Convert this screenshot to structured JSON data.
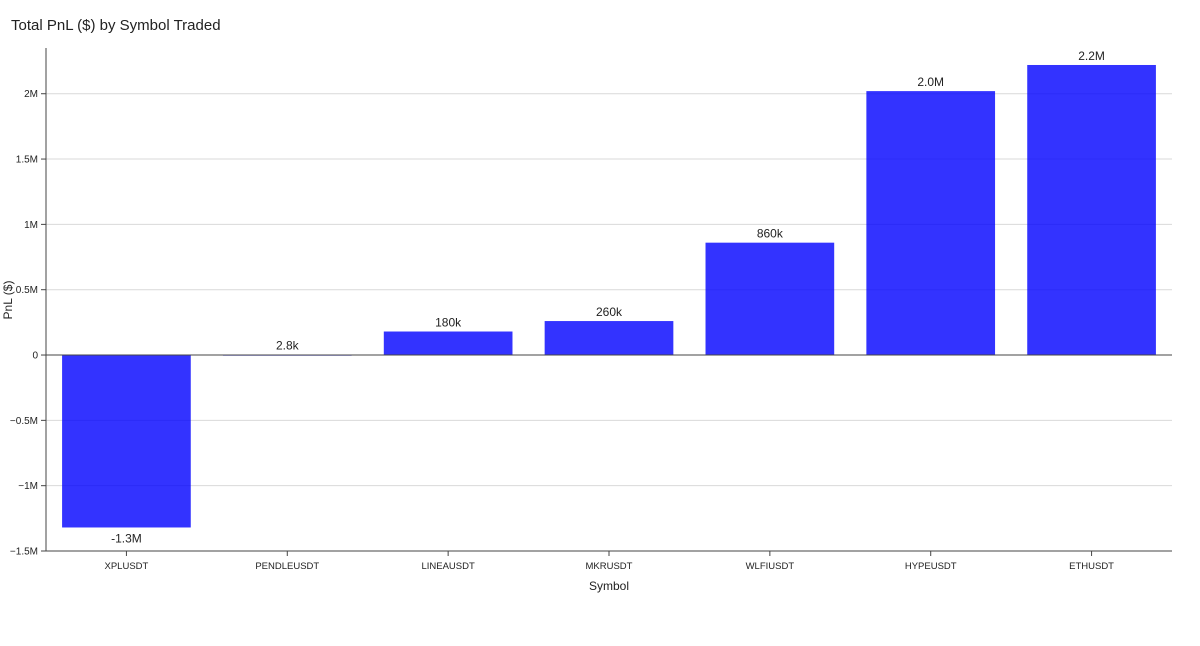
{
  "chart_data": {
    "type": "bar",
    "title": "Total PnL ($) by Symbol Traded",
    "xlabel": "Symbol",
    "ylabel": "PnL ($)",
    "categories": [
      "XPLUSDT",
      "PENDLEUSDT",
      "LINEAUSDT",
      "MKRUSDT",
      "WLFIUSDT",
      "HYPEUSDT",
      "ETHUSDT"
    ],
    "values": [
      -1320000,
      2800,
      180000,
      260000,
      860000,
      2020000,
      2220000
    ],
    "data_labels": [
      "-1.3M",
      "2.8k",
      "180k",
      "260k",
      "860k",
      "2.0M",
      "2.2M"
    ],
    "ylim": [
      -1500000,
      2350000
    ],
    "yticks": [
      -1500000,
      -1000000,
      -500000,
      0,
      500000,
      1000000,
      1500000,
      2000000
    ],
    "ytick_labels": [
      "−1.5M",
      "−1M",
      "−0.5M",
      "0",
      "0.5M",
      "1M",
      "1.5M",
      "2M"
    ],
    "grid": true,
    "legend": "none",
    "bar_color": "#0000ff",
    "bar_opacity": 0.8
  }
}
